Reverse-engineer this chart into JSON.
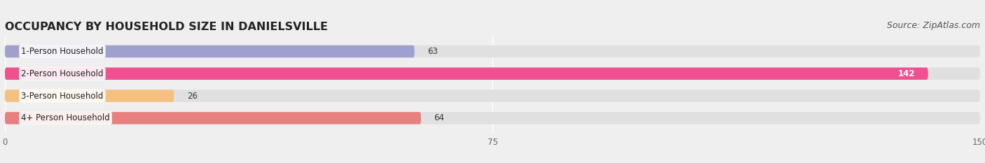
{
  "title": "OCCUPANCY BY HOUSEHOLD SIZE IN DANIELSVILLE",
  "source": "Source: ZipAtlas.com",
  "categories": [
    "1-Person Household",
    "2-Person Household",
    "3-Person Household",
    "4+ Person Household"
  ],
  "values": [
    63,
    142,
    26,
    64
  ],
  "bar_colors": [
    "#a0a0d0",
    "#f05090",
    "#f5c080",
    "#e88080"
  ],
  "xlim": [
    0,
    150
  ],
  "xticks": [
    0,
    75,
    150
  ],
  "background_color": "#efefef",
  "bar_background_color": "#e0e0e0",
  "title_fontsize": 11.5,
  "source_fontsize": 9,
  "label_fontsize": 8.5,
  "value_fontsize": 8.5,
  "bar_height": 0.55,
  "bar_gap": 0.45
}
